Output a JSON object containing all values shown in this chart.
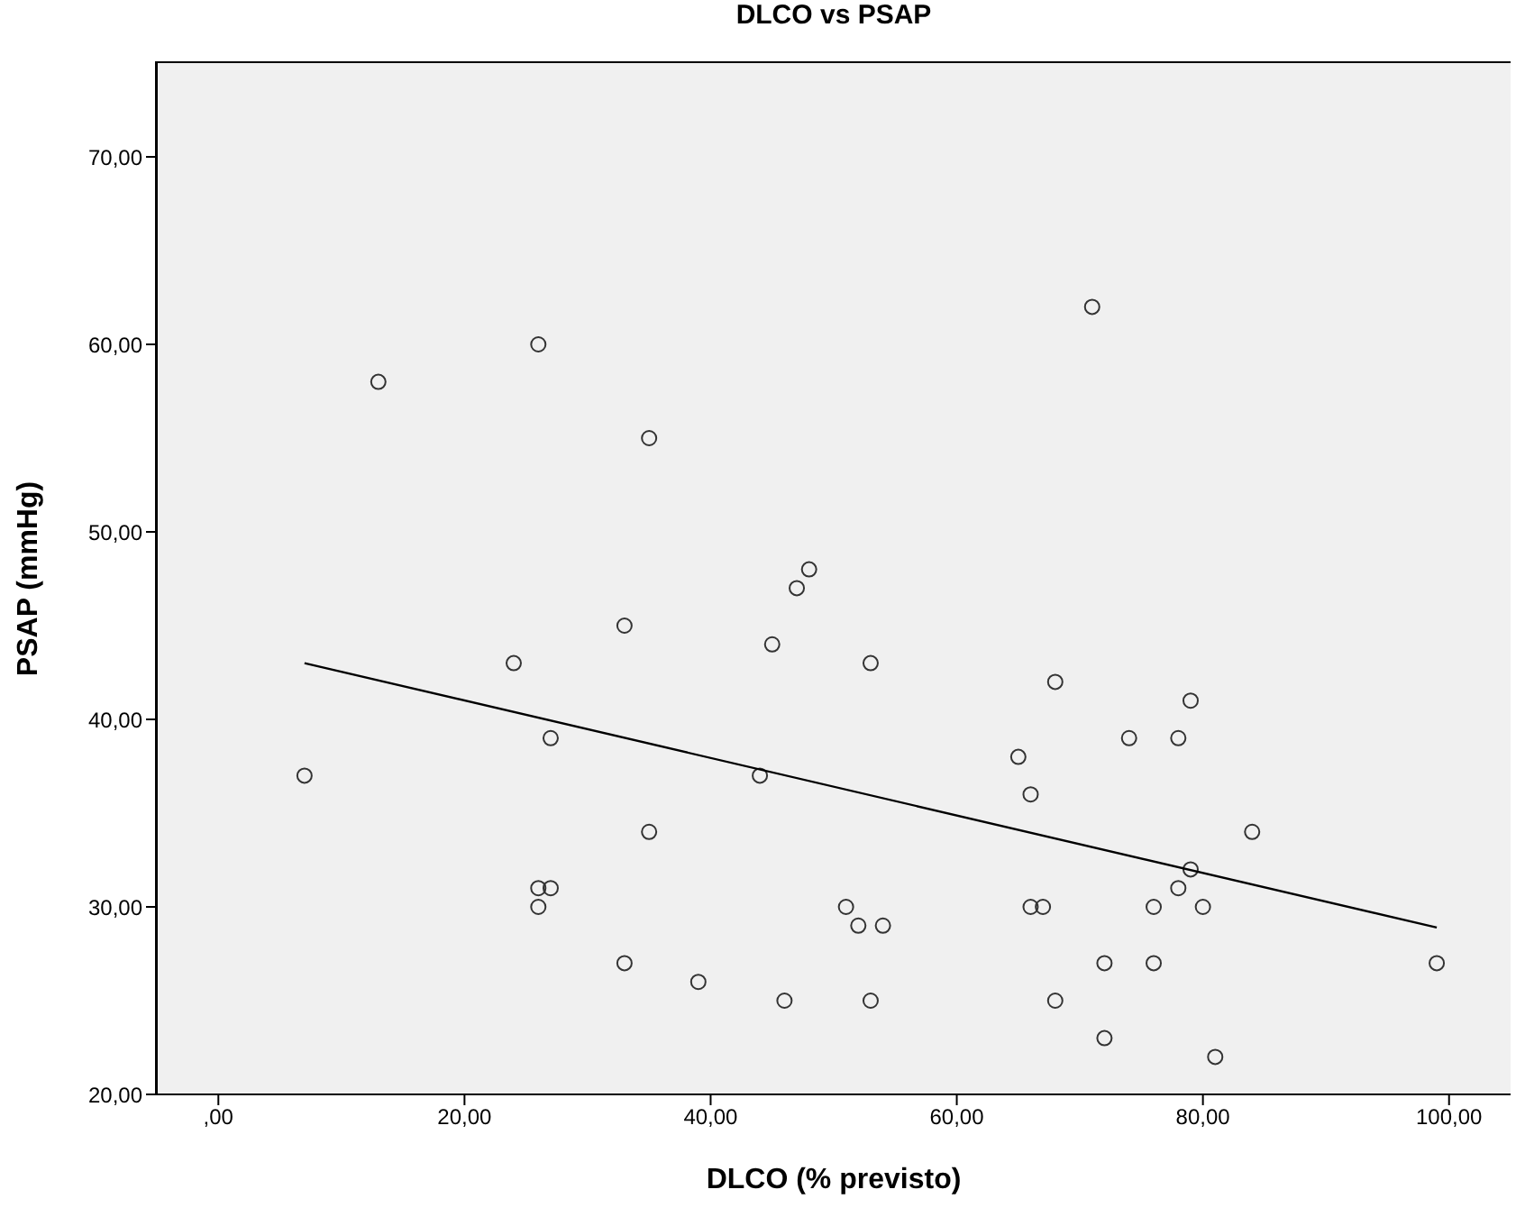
{
  "chart_data": {
    "type": "scatter",
    "title": "DLCO vs PSAP",
    "xlabel": "DLCO (% previsto)",
    "ylabel": "PSAP (mmHg)",
    "xlim": [
      -5,
      105
    ],
    "xticks": [
      {
        "value": 0,
        "label": ",00"
      },
      {
        "value": 20,
        "label": "20,00"
      },
      {
        "value": 40,
        "label": "40,00"
      },
      {
        "value": 60,
        "label": "60,00"
      },
      {
        "value": 80,
        "label": "80,00"
      },
      {
        "value": 100,
        "label": "100,00"
      }
    ],
    "ylim": [
      20,
      75
    ],
    "yticks": [
      {
        "value": 20,
        "label": "20,00"
      },
      {
        "value": 30,
        "label": "30,00"
      },
      {
        "value": 40,
        "label": "40,00"
      },
      {
        "value": 50,
        "label": "50,00"
      },
      {
        "value": 60,
        "label": "60,00"
      },
      {
        "value": 70,
        "label": "70,00"
      }
    ],
    "grid": false,
    "legend": false,
    "marker": "circle",
    "series": [
      {
        "color": "#333333",
        "x": [
          7,
          13,
          24,
          26,
          26,
          26,
          27,
          27,
          33,
          33,
          35,
          35,
          39,
          44,
          45,
          46,
          47,
          48,
          51,
          52,
          53,
          53,
          54,
          65,
          66,
          66,
          67,
          68,
          68,
          71,
          72,
          72,
          74,
          76,
          76,
          78,
          78,
          79,
          79,
          80,
          81,
          84,
          99
        ],
        "values": [
          37,
          58,
          43,
          60,
          31,
          30,
          39,
          31,
          45,
          27,
          55,
          34,
          26,
          37,
          44,
          25,
          47,
          48,
          30,
          29,
          43,
          25,
          29,
          38,
          36,
          30,
          30,
          42,
          25,
          62,
          27,
          23,
          39,
          30,
          27,
          39,
          31,
          41,
          32,
          30,
          22,
          34,
          27
        ]
      },
      {
        "type": "line",
        "marker": "none",
        "color": "#000000",
        "x": [
          7,
          99
        ],
        "values": [
          43,
          28.9
        ]
      }
    ]
  }
}
